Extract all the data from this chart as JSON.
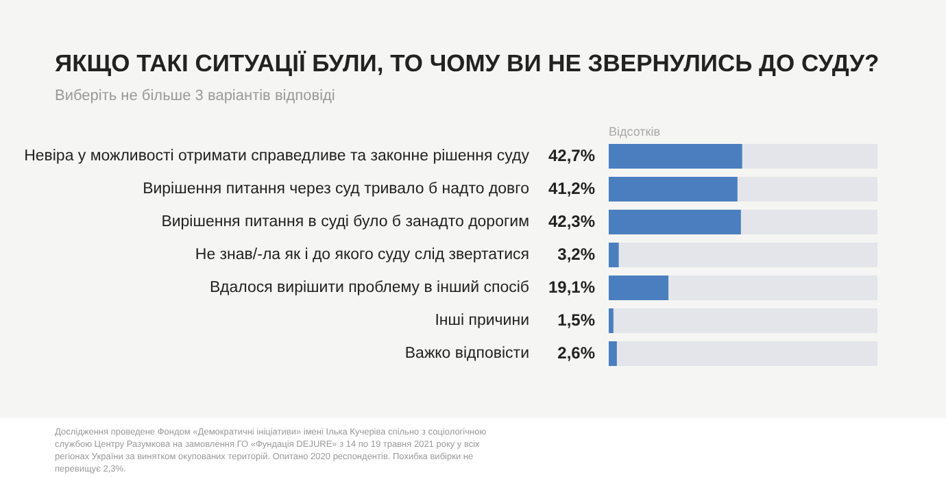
{
  "chart_data": {
    "type": "bar",
    "orientation": "horizontal",
    "title": "ЯКЩО ТАКІ СИТУАЦІЇ БУЛИ, ТО ЧОМУ ВИ НЕ ЗВЕРНУЛИСЬ ДО СУДУ?",
    "subtitle": "Виберіть не більше 3 варіантів відповіді",
    "categories": [
      "Невіра у можливості отримати справедливе та законне рішення суду",
      "Вирішення питання через суд тривало б надто довго",
      "Вирішення питання в суді було б занадто дорогим",
      "Не знав/-ла як і до якого суду слід звертатися",
      "Вдалося вирішити проблему в інший спосіб",
      "Інші причини",
      "Важко відповісти"
    ],
    "values": [
      42.7,
      41.2,
      42.3,
      3.2,
      19.1,
      1.5,
      2.6
    ],
    "value_labels": [
      "42,7%",
      "41,2%",
      "42,3%",
      "3,2%",
      "19,1%",
      "1,5%",
      "2,6%"
    ],
    "color": "#4a7ebf",
    "xlim": [
      0,
      86
    ],
    "tick_labels": "y",
    "legend": false,
    "annotations": [
      "Відсотків",
      "Дослідження проведене Фондом «Демократичні ініціативи» імені Ілька Кучеріва спільно з соціологічною службою Центру Разумкова на замовлення ГО «Фундація DEJURE» з 14 по 19 травня 2021 року у всіх регіонах України за винятком окупованих територій. Опитано 2020 респондентів. Похибка вибірки не перевищує 2,3%."
    ]
  }
}
